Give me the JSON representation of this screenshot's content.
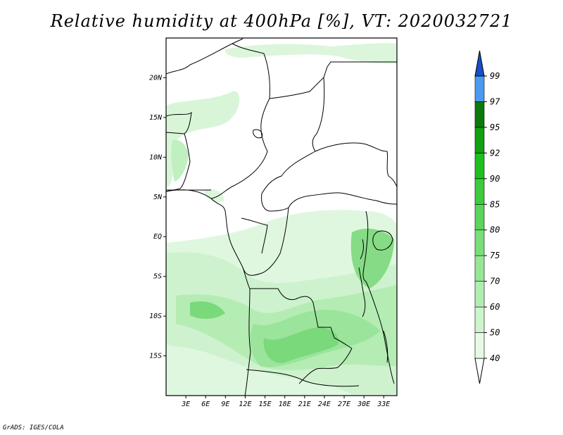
{
  "title": "Relative humidity at 400hPa [%], VT: 2020032721",
  "credit": "GrADS: IGES/COLA",
  "map": {
    "lat_labels": [
      "20N",
      "15N",
      "10N",
      "5N",
      "EQ",
      "5S",
      "10S",
      "15S"
    ],
    "lon_labels": [
      "3E",
      "6E",
      "9E",
      "12E",
      "15E",
      "18E",
      "21E",
      "24E",
      "27E",
      "30E",
      "33E"
    ],
    "lat_range_deg": [
      -20,
      25
    ],
    "lon_range_deg": [
      0,
      35
    ]
  },
  "colorbar": {
    "levels": [
      "40",
      "50",
      "60",
      "70",
      "75",
      "80",
      "85",
      "90",
      "92",
      "95",
      "97",
      "99"
    ],
    "colors": [
      "#ffffff",
      "#e6fae6",
      "#cdf5cd",
      "#b0eeb0",
      "#96e696",
      "#78de78",
      "#5ad55a",
      "#3ccb3c",
      "#1fbf1f",
      "#10a010",
      "#0a7a0a",
      "#4a9af0",
      "#2a70e0",
      "#1450c8"
    ]
  }
}
